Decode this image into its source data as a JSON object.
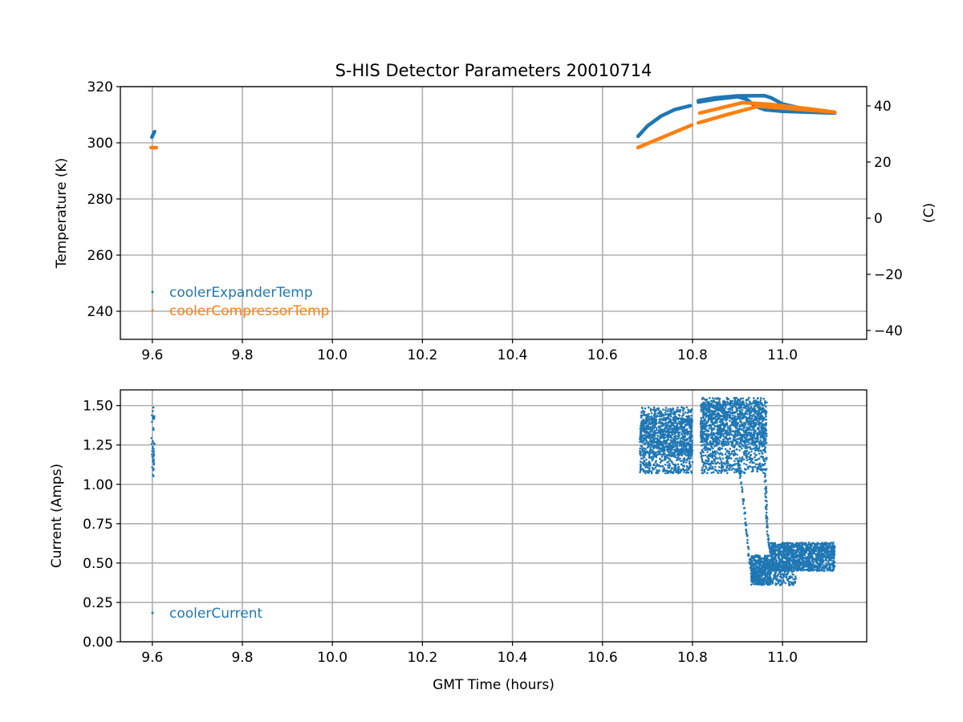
{
  "chart_data": [
    {
      "type": "scatter",
      "title": "S-HIS Detector Parameters 20010714",
      "xlabel": "",
      "ylabel": "Temperature (K)",
      "ylabel_right": "(C)",
      "xlim": [
        9.529,
        11.187
      ],
      "ylim": [
        230,
        320
      ],
      "ylim_right": [
        -43.15,
        46.85
      ],
      "xticks": [
        "9.6",
        "9.8",
        "10.0",
        "10.2",
        "10.4",
        "10.6",
        "10.8",
        "11.0"
      ],
      "xtick_values": [
        9.6,
        9.8,
        10.0,
        10.2,
        10.4,
        10.6,
        10.8,
        11.0
      ],
      "yticks": [
        "240",
        "260",
        "280",
        "300",
        "320"
      ],
      "ytick_values": [
        240,
        260,
        280,
        300,
        320
      ],
      "yticks_right": [
        "−40",
        "−20",
        "0",
        "20",
        "40"
      ],
      "ytick_right_values": [
        -40,
        -20,
        0,
        20,
        40
      ],
      "grid": true,
      "legend_position": "lower-left",
      "series": [
        {
          "name": "coolerExpanderTemp",
          "color": "#1f77b4",
          "segments": [
            [
              [
                9.599,
                302.0
              ],
              [
                9.605,
                304.0
              ]
            ],
            [
              [
                10.679,
                302.3
              ],
              [
                10.7,
                306.0
              ],
              [
                10.73,
                309.5
              ],
              [
                10.76,
                311.8
              ],
              [
                10.795,
                313.2
              ]
            ],
            [
              [
                10.813,
                314.5
              ],
              [
                10.85,
                315.5
              ],
              [
                10.9,
                316.4
              ],
              [
                10.92,
                315.5
              ],
              [
                10.94,
                313.0
              ],
              [
                10.96,
                311.8
              ],
              [
                11.0,
                311.2
              ],
              [
                11.116,
                310.6
              ]
            ],
            [
              [
                10.813,
                315.0
              ],
              [
                10.85,
                316.0
              ],
              [
                10.9,
                316.7
              ],
              [
                10.96,
                316.8
              ],
              [
                10.975,
                316.0
              ],
              [
                11.0,
                313.8
              ],
              [
                11.05,
                312.0
              ],
              [
                11.116,
                310.8
              ]
            ]
          ]
        },
        {
          "name": "coolerCompressorTemp",
          "color": "#ff7f0e",
          "segments": [
            [
              [
                9.597,
                298.3
              ],
              [
                9.609,
                298.3
              ]
            ],
            [
              [
                10.679,
                298.3
              ],
              [
                10.74,
                302.4
              ],
              [
                10.798,
                306.3
              ]
            ],
            [
              [
                10.813,
                307.1
              ],
              [
                10.88,
                310.2
              ],
              [
                10.946,
                313.0
              ],
              [
                11.0,
                312.4
              ],
              [
                11.116,
                310.9
              ]
            ],
            [
              [
                10.816,
                310.6
              ],
              [
                10.86,
                312.3
              ],
              [
                10.911,
                314.3
              ],
              [
                10.973,
                313.7
              ],
              [
                11.05,
                312.3
              ],
              [
                11.116,
                310.9
              ]
            ]
          ]
        }
      ]
    },
    {
      "type": "scatter",
      "title": "",
      "xlabel": "GMT Time (hours)",
      "ylabel": "Current (Amps)",
      "xlim": [
        9.529,
        11.187
      ],
      "ylim": [
        0,
        1.6
      ],
      "xticks": [
        "9.6",
        "9.8",
        "10.0",
        "10.2",
        "10.4",
        "10.6",
        "10.8",
        "11.0"
      ],
      "xtick_values": [
        9.6,
        9.8,
        10.0,
        10.2,
        10.4,
        10.6,
        10.8,
        11.0
      ],
      "yticks": [
        "0.00",
        "0.25",
        "0.50",
        "0.75",
        "1.00",
        "1.25",
        "1.50"
      ],
      "ytick_values": [
        0,
        0.25,
        0.5,
        0.75,
        1.0,
        1.25,
        1.5
      ],
      "grid": true,
      "legend_position": "lower-left",
      "series": [
        {
          "name": "coolerCurrent",
          "color": "#1f77b4",
          "clusters": [
            {
              "x": [
                9.598,
                9.605
              ],
              "y": [
                1.05,
                1.49
              ],
              "n": 40
            },
            {
              "x": [
                10.683,
                10.8
              ],
              "y": [
                1.07,
                1.49
              ],
              "n": 900
            },
            {
              "x": [
                10.683,
                10.8
              ],
              "y": [
                1.18,
                1.42
              ],
              "n": 500
            },
            {
              "x": [
                10.818,
                10.965
              ],
              "y": [
                1.07,
                1.55
              ],
              "n": 1100
            },
            {
              "x": [
                10.818,
                10.965
              ],
              "y": [
                1.25,
                1.52
              ],
              "n": 700
            },
            {
              "x": [
                10.93,
                10.975
              ],
              "y": [
                0.36,
                0.55
              ],
              "n": 500
            },
            {
              "x": [
                10.975,
                11.116
              ],
              "y": [
                0.45,
                0.63
              ],
              "n": 1200
            },
            {
              "x": [
                10.975,
                11.03
              ],
              "y": [
                0.36,
                0.5
              ],
              "n": 150
            }
          ],
          "transitions": [
            [
              [
                10.902,
                1.14
              ],
              [
                10.915,
                0.85
              ],
              [
                10.925,
                0.55
              ],
              [
                10.932,
                0.41
              ]
            ],
            [
              [
                10.961,
                1.1
              ],
              [
                10.964,
                0.85
              ],
              [
                10.968,
                0.65
              ],
              [
                10.975,
                0.55
              ]
            ]
          ]
        }
      ]
    }
  ]
}
